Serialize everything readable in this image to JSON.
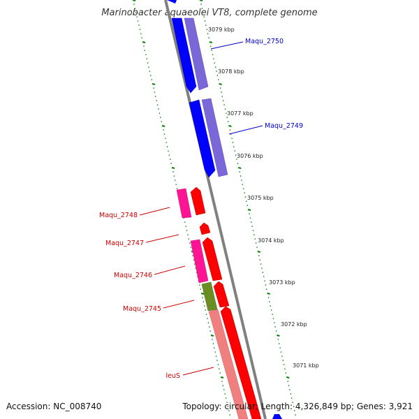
{
  "title": "Marinobacter aquaeolei VT8, complete genome",
  "footer": {
    "accession": "Accession: NC_008740",
    "summary": "Topology: circular; Length: 4,326,849 bp; Genes: 3,921"
  },
  "colors": {
    "forward_cds": "#0000ff",
    "forward_gene": "#7b68d8",
    "reverse_cds": "#ff0000",
    "reverse_gene": "#ff1493",
    "leuS_gene": "#f08080",
    "maqu2745_gene": "#6b8e23",
    "backbone": "#808080",
    "tick": "#008000"
  },
  "scale": {
    "kbp_labels": [
      "3079 kbp",
      "3078 kbp",
      "3077 kbp",
      "3076 kbp",
      "3075 kbp",
      "3074 kbp",
      "3073 kbp",
      "3072 kbp",
      "3071 kbp"
    ]
  },
  "genes": [
    {
      "label": "Maqu_2750",
      "strand": "forward",
      "color": "#0000cc"
    },
    {
      "label": "Maqu_2749",
      "strand": "forward",
      "color": "#0000cc"
    },
    {
      "label": "Maqu_2748",
      "strand": "reverse",
      "color": "#cc0000"
    },
    {
      "label": "Maqu_2747",
      "strand": "reverse",
      "color": "#cc0000"
    },
    {
      "label": "Maqu_2746",
      "strand": "reverse",
      "color": "#cc0000"
    },
    {
      "label": "Maqu_2745",
      "strand": "reverse",
      "color": "#cc0000"
    },
    {
      "label": "leuS",
      "strand": "reverse",
      "color": "#cc0000"
    }
  ]
}
